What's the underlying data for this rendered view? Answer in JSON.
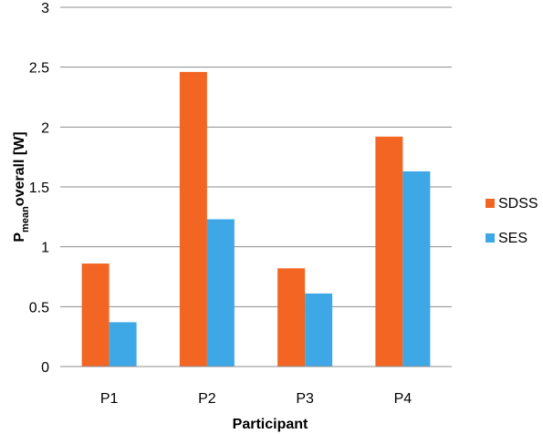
{
  "chart_data": {
    "type": "bar",
    "categories": [
      "P1",
      "P2",
      "P3",
      "P4"
    ],
    "series": [
      {
        "name": "SDSS",
        "color": "#f26522",
        "values": [
          0.86,
          2.46,
          0.82,
          1.92
        ]
      },
      {
        "name": "SES",
        "color": "#3ea8e6",
        "values": [
          0.37,
          1.23,
          0.61,
          1.63
        ]
      }
    ],
    "xlabel": "Participant",
    "ylabel_main": "P",
    "ylabel_subscript": "mean",
    "ylabel_rest": "overall [W]",
    "ylim": [
      0,
      3
    ],
    "yticks": [
      "0",
      "0.5",
      "1",
      "1.5",
      "2",
      "2.5",
      "3"
    ],
    "grid": true,
    "legend_position": "right"
  }
}
